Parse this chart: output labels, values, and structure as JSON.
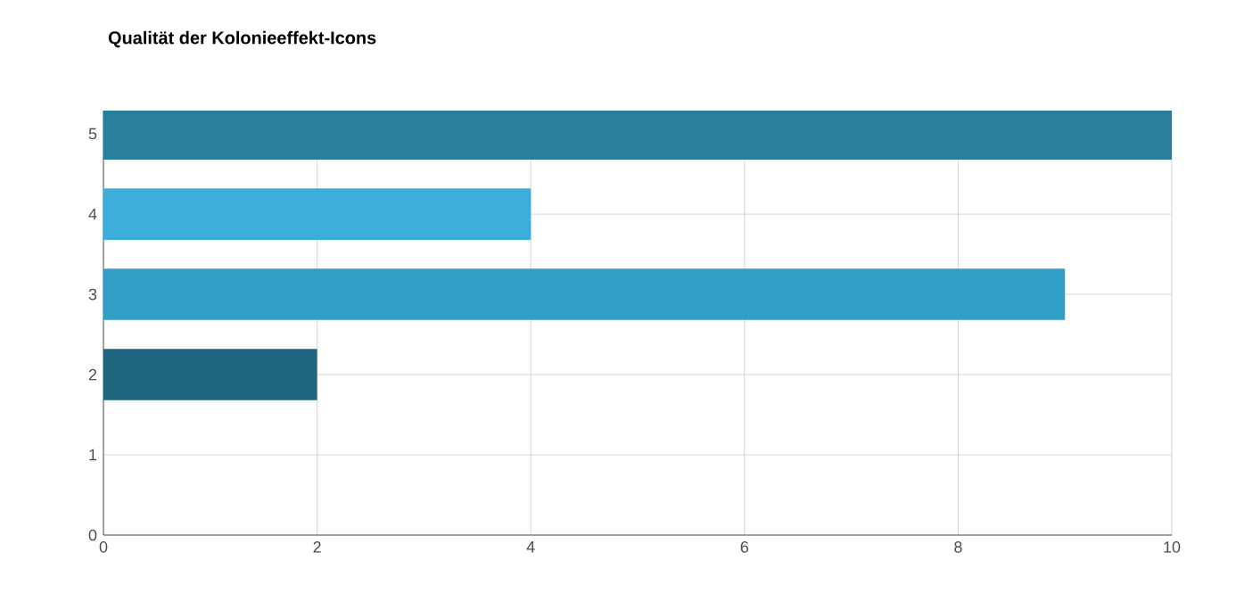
{
  "chart_data": {
    "type": "bar",
    "orientation": "horizontal",
    "title": "Qualität der Kolonieeffekt-Icons",
    "categories": [
      "5",
      "4",
      "3",
      "2",
      "1",
      "0"
    ],
    "values": [
      10,
      4,
      9,
      2,
      0,
      0
    ],
    "colors": [
      "#277f9c",
      "#3aaed9",
      "#309ec6",
      "#1f6680",
      "#1f6680",
      "#1f6680"
    ],
    "xlim": [
      0,
      10
    ],
    "xticks": [
      0,
      2,
      4,
      6,
      8,
      10
    ],
    "grid": true
  }
}
